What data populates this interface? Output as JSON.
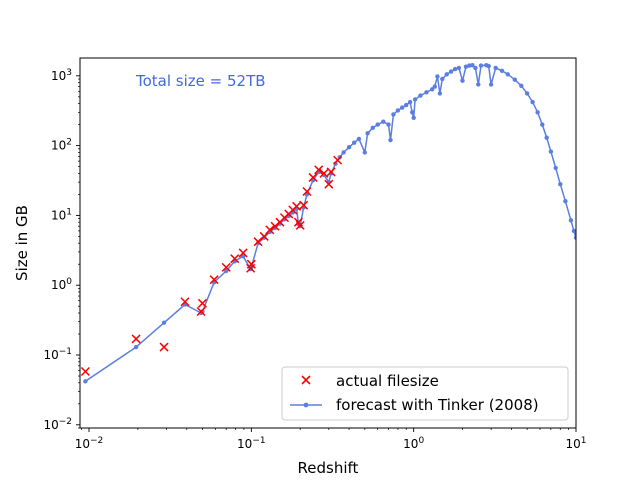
{
  "chart_data": {
    "type": "scatter",
    "title": "",
    "xlabel": "Redshift",
    "ylabel": "Size in GB",
    "xscale": "log",
    "yscale": "log",
    "xlim": [
      0.0088,
      10
    ],
    "ylim": [
      0.009,
      1800
    ],
    "x_ticks": [
      {
        "value": 0.01,
        "base": "10",
        "exp": "−2"
      },
      {
        "value": 0.1,
        "base": "10",
        "exp": "−1"
      },
      {
        "value": 1,
        "base": "10",
        "exp": "0"
      },
      {
        "value": 10,
        "base": "10",
        "exp": "1"
      }
    ],
    "y_ticks": [
      {
        "value": 0.01,
        "base": "10",
        "exp": "−2"
      },
      {
        "value": 0.1,
        "base": "10",
        "exp": "−1"
      },
      {
        "value": 1,
        "base": "10",
        "exp": "0"
      },
      {
        "value": 10,
        "base": "10",
        "exp": "1"
      },
      {
        "value": 100,
        "base": "10",
        "exp": "2"
      },
      {
        "value": 1000,
        "base": "10",
        "exp": "3"
      }
    ],
    "annotation": "Total size = 52TB",
    "annotation_color": "#4169e1",
    "legend_position": "lower-right",
    "series": [
      {
        "name": "actual filesize",
        "marker": "x",
        "color": "#ff0000",
        "points": [
          [
            0.0095,
            0.058
          ],
          [
            0.0195,
            0.17
          ],
          [
            0.029,
            0.13
          ],
          [
            0.039,
            0.58
          ],
          [
            0.049,
            0.42
          ],
          [
            0.05,
            0.55
          ],
          [
            0.059,
            1.2
          ],
          [
            0.07,
            1.8
          ],
          [
            0.079,
            2.4
          ],
          [
            0.089,
            2.9
          ],
          [
            0.099,
            1.75
          ],
          [
            0.1,
            2.0
          ],
          [
            0.11,
            4.2
          ],
          [
            0.12,
            5.0
          ],
          [
            0.13,
            6.2
          ],
          [
            0.14,
            7.0
          ],
          [
            0.15,
            8.0
          ],
          [
            0.16,
            9.3
          ],
          [
            0.17,
            10.5
          ],
          [
            0.18,
            12.0
          ],
          [
            0.19,
            13.5
          ],
          [
            0.195,
            8.0
          ],
          [
            0.2,
            7.2
          ],
          [
            0.21,
            14.0
          ],
          [
            0.22,
            22.0
          ],
          [
            0.24,
            35.0
          ],
          [
            0.26,
            45.0
          ],
          [
            0.28,
            40.0
          ],
          [
            0.3,
            28.0
          ],
          [
            0.31,
            42.0
          ],
          [
            0.34,
            62.0
          ]
        ]
      },
      {
        "name": "forecast with Tinker (2008)",
        "marker": "line-dot",
        "color": "#5b7fe0",
        "points": [
          [
            0.0095,
            0.042
          ],
          [
            0.0195,
            0.13
          ],
          [
            0.029,
            0.29
          ],
          [
            0.039,
            0.53
          ],
          [
            0.049,
            0.4
          ],
          [
            0.05,
            0.42
          ],
          [
            0.059,
            1.1
          ],
          [
            0.07,
            1.6
          ],
          [
            0.079,
            2.2
          ],
          [
            0.089,
            2.6
          ],
          [
            0.099,
            1.7
          ],
          [
            0.1,
            1.8
          ],
          [
            0.11,
            4.0
          ],
          [
            0.12,
            4.8
          ],
          [
            0.13,
            5.8
          ],
          [
            0.14,
            6.6
          ],
          [
            0.15,
            7.6
          ],
          [
            0.16,
            8.8
          ],
          [
            0.17,
            9.8
          ],
          [
            0.18,
            11.0
          ],
          [
            0.19,
            12.5
          ],
          [
            0.195,
            7.5
          ],
          [
            0.2,
            7.0
          ],
          [
            0.21,
            13.0
          ],
          [
            0.22,
            20.0
          ],
          [
            0.24,
            32.0
          ],
          [
            0.26,
            42.0
          ],
          [
            0.28,
            38.0
          ],
          [
            0.3,
            30.0
          ],
          [
            0.31,
            40.0
          ],
          [
            0.33,
            55.0
          ],
          [
            0.35,
            68.0
          ],
          [
            0.37,
            80.0
          ],
          [
            0.4,
            95.0
          ],
          [
            0.43,
            110.0
          ],
          [
            0.46,
            125.0
          ],
          [
            0.5,
            80.0
          ],
          [
            0.52,
            150.0
          ],
          [
            0.56,
            180.0
          ],
          [
            0.6,
            200.0
          ],
          [
            0.65,
            220.0
          ],
          [
            0.7,
            200.0
          ],
          [
            0.72,
            120.0
          ],
          [
            0.75,
            280.0
          ],
          [
            0.8,
            320.0
          ],
          [
            0.85,
            350.0
          ],
          [
            0.9,
            380.0
          ],
          [
            0.95,
            420.0
          ],
          [
            0.98,
            300.0
          ],
          [
            1.0,
            250.0
          ],
          [
            1.02,
            460.0
          ],
          [
            1.1,
            520.0
          ],
          [
            1.2,
            580.0
          ],
          [
            1.3,
            640.0
          ],
          [
            1.35,
            700.0
          ],
          [
            1.4,
            980.0
          ],
          [
            1.45,
            560.0
          ],
          [
            1.5,
            900.0
          ],
          [
            1.6,
            1050.0
          ],
          [
            1.7,
            1150.0
          ],
          [
            1.8,
            1250.0
          ],
          [
            1.9,
            1300.0
          ],
          [
            2.0,
            850.0
          ],
          [
            2.1,
            1350.0
          ],
          [
            2.2,
            1400.0
          ],
          [
            2.3,
            1420.0
          ],
          [
            2.4,
            1300.0
          ],
          [
            2.5,
            750.0
          ],
          [
            2.6,
            1400.0
          ],
          [
            2.8,
            1420.0
          ],
          [
            2.9,
            1380.0
          ],
          [
            3.0,
            750.0
          ],
          [
            3.2,
            1300.0
          ],
          [
            3.5,
            1180.0
          ],
          [
            3.8,
            1050.0
          ],
          [
            4.2,
            880.0
          ],
          [
            4.6,
            720.0
          ],
          [
            5.0,
            560.0
          ],
          [
            5.4,
            420.0
          ],
          [
            5.8,
            300.0
          ],
          [
            6.2,
            200.0
          ],
          [
            6.6,
            130.0
          ],
          [
            7.0,
            82.0
          ],
          [
            7.5,
            48.0
          ],
          [
            8.0,
            28.0
          ],
          [
            8.6,
            16.0
          ],
          [
            9.3,
            8.5
          ],
          [
            9.7,
            6.0
          ],
          [
            10.0,
            4.8
          ]
        ]
      }
    ]
  }
}
